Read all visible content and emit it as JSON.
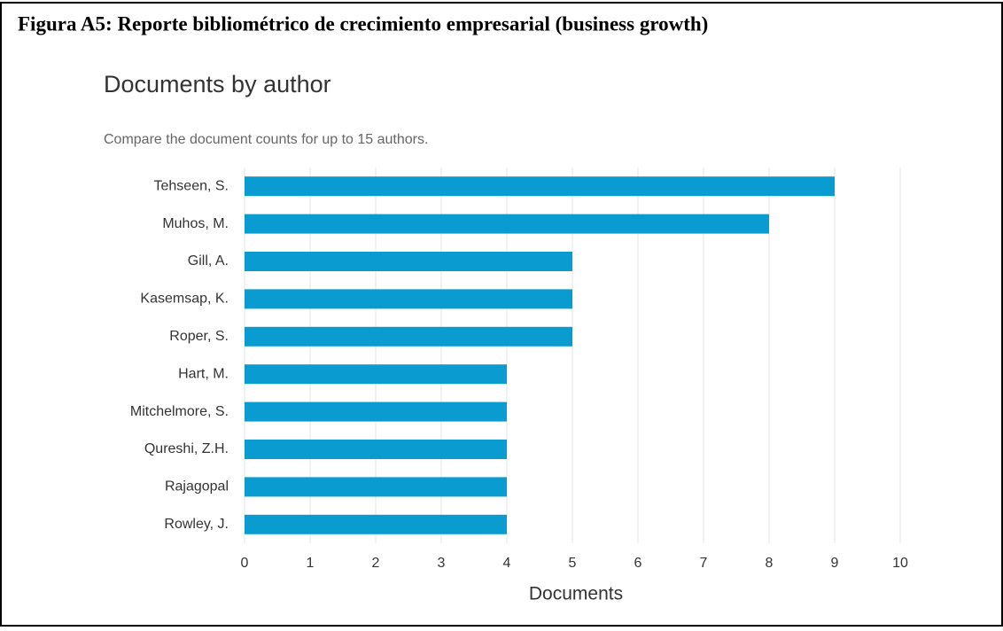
{
  "caption": "Figura A5: Reporte bibliométrico de crecimiento empresarial (business growth)",
  "chart_data": {
    "type": "bar",
    "orientation": "horizontal",
    "title": "Documents by author",
    "subtitle": "Compare the document counts for up to 15 authors.",
    "categories": [
      "Tehseen, S.",
      "Muhos, M.",
      "Gill, A.",
      "Kasemsap, K.",
      "Roper, S.",
      "Hart, M.",
      "Mitchelmore, S.",
      "Qureshi, Z.H.",
      "Rajagopal",
      "Rowley, J."
    ],
    "values": [
      9,
      8,
      5,
      5,
      5,
      4,
      4,
      4,
      4,
      4
    ],
    "color": "#0a9cd0",
    "xlabel": "Documents",
    "xlim": [
      0,
      10
    ],
    "xticks": [
      0,
      1,
      2,
      3,
      4,
      5,
      6,
      7,
      8,
      9,
      10
    ],
    "grid": true
  }
}
